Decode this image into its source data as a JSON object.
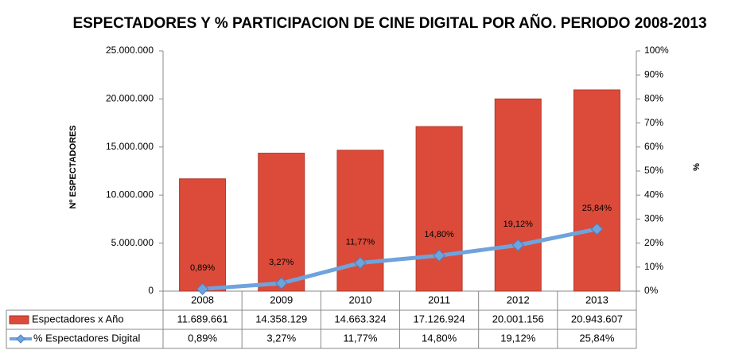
{
  "chart_data": {
    "type": "bar-line",
    "title": "ESPECTADORES Y % PARTICIPACION DE CINE DIGITAL POR AÑO. PERIODO 2008-2013",
    "y_label": "Nº ESPECTADORES",
    "y2_label": "%",
    "categories": [
      "2008",
      "2009",
      "2010",
      "2011",
      "2012",
      "2013"
    ],
    "series": [
      {
        "name": "Espectadores x Año",
        "type": "bar",
        "color": "#dc4b3a",
        "values": [
          11689661,
          14358129,
          14663324,
          17126924,
          20001156,
          20943607
        ],
        "value_labels": [
          "11.689.661",
          "14.358.129",
          "14.663.324",
          "17.126.924",
          "20.001.156",
          "20.943.607"
        ]
      },
      {
        "name": "% Espectadores Digital",
        "type": "line",
        "axis": "y2",
        "color": "#6fa3dc",
        "values": [
          0.89,
          3.27,
          11.77,
          14.8,
          19.12,
          25.84
        ],
        "value_labels": [
          "0,89%",
          "3,27%",
          "11,77%",
          "14,80%",
          "19,12%",
          "25,84%"
        ]
      }
    ],
    "ylim": [
      0,
      25000000
    ],
    "yticks": [
      0,
      {
        "value": 5000000,
        "label": "5.000.000"
      },
      {
        "value": 10000000,
        "label": "10.000.000"
      },
      {
        "value": 15000000,
        "label": "15.000.000"
      },
      {
        "value": 20000000,
        "label": "20.000.000"
      },
      {
        "value": 25000000,
        "label": "25.000.000"
      }
    ],
    "y2lim": [
      0,
      100
    ],
    "y2ticks": [
      {
        "value": 0,
        "label": "0%"
      },
      {
        "value": 10,
        "label": "10%"
      },
      {
        "value": 20,
        "label": "20%"
      },
      {
        "value": 30,
        "label": "30%"
      },
      {
        "value": 40,
        "label": "40%"
      },
      {
        "value": 50,
        "label": "50%"
      },
      {
        "value": 60,
        "label": "60%"
      },
      {
        "value": 70,
        "label": "70%"
      },
      {
        "value": 80,
        "label": "80%"
      },
      {
        "value": 90,
        "label": "90%"
      },
      {
        "value": 100,
        "label": "100%"
      }
    ]
  }
}
